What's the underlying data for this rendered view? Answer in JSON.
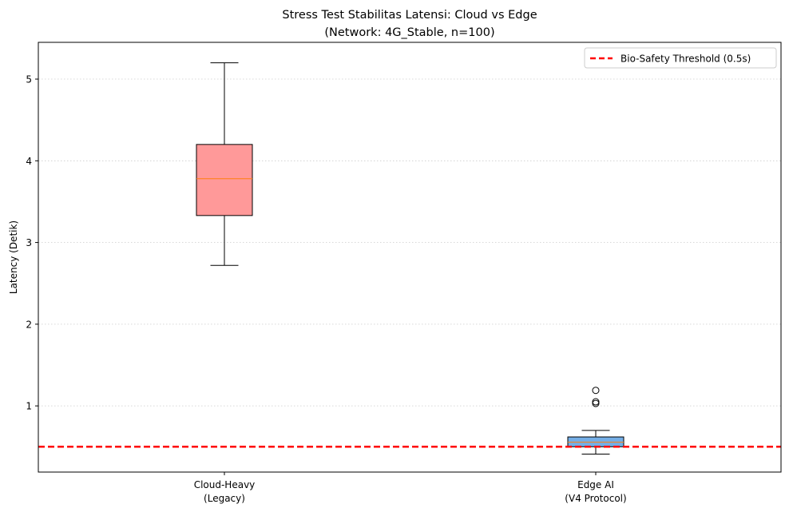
{
  "chart_data": {
    "type": "box",
    "title": "Stress Test Stabilitas Latensi: Cloud vs Edge",
    "subtitle": "(Network: 4G_Stable, n=100)",
    "xlabel": "",
    "ylabel": "Latency (Detik)",
    "ylim": [
      0.19,
      5.45
    ],
    "yticks": [
      1,
      2,
      3,
      4,
      5
    ],
    "grid": "y-dotted",
    "categories": [
      {
        "line1": "Cloud-Heavy",
        "line2": "(Legacy)"
      },
      {
        "line1": "Edge AI",
        "line2": "(V4 Protocol)"
      }
    ],
    "boxes": [
      {
        "name": "Cloud-Heavy (Legacy)",
        "whisker_low": 2.72,
        "q1": 3.33,
        "median": 3.78,
        "q3": 4.2,
        "whisker_high": 5.2,
        "outliers": [],
        "color": "#ff9999"
      },
      {
        "name": "Edge AI (V4 Protocol)",
        "whisker_low": 0.41,
        "q1": 0.5,
        "median": 0.555,
        "q3": 0.62,
        "whisker_high": 0.7,
        "outliers": [
          1.03,
          1.05,
          1.19
        ],
        "color": "#74aee6"
      }
    ],
    "median_color": "#ff7f0e",
    "threshold": {
      "value": 0.5,
      "label": "Bio-Safety Threshold (0.5s)",
      "color": "#ff0000"
    },
    "legend": "top-right"
  }
}
